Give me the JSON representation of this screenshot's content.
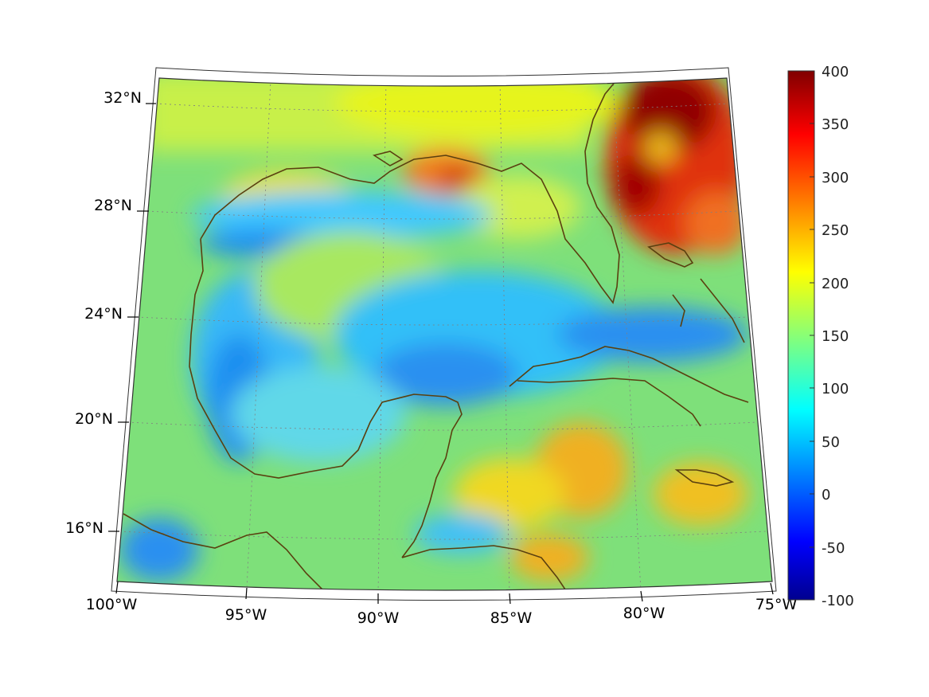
{
  "map": {
    "projection": "lambert-conic",
    "region": "Gulf of Mexico and Caribbean",
    "lat_labels": [
      "32°N",
      "28°N",
      "24°N",
      "20°N",
      "16°N"
    ],
    "lon_labels": [
      "100°W",
      "95°W",
      "90°W",
      "85°W",
      "80°W",
      "75°W"
    ],
    "graticule": "dotted",
    "coastline_color": "#5a4010"
  },
  "colorbar": {
    "colormap": "jet",
    "min": -100,
    "max": 400,
    "ticks": [
      "400",
      "350",
      "300",
      "250",
      "200",
      "150",
      "100",
      "50",
      "0",
      "-50",
      "-100"
    ]
  }
}
